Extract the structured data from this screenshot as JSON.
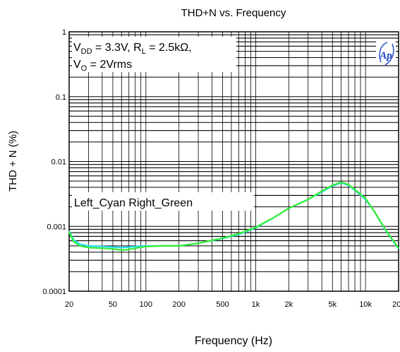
{
  "chart_data": {
    "type": "line",
    "title": "THD+N vs. Frequency",
    "xlabel": "Frequency (Hz)",
    "ylabel": "THD + N (%)",
    "xscale": "log",
    "yscale": "log",
    "xlim": [
      20,
      20000
    ],
    "ylim": [
      0.0001,
      1
    ],
    "grid": true,
    "x_ticks": [
      {
        "v": 20,
        "label": "20"
      },
      {
        "v": 50,
        "label": "50"
      },
      {
        "v": 100,
        "label": "100"
      },
      {
        "v": 200,
        "label": "200"
      },
      {
        "v": 500,
        "label": "500"
      },
      {
        "v": 1000,
        "label": "1k"
      },
      {
        "v": 2000,
        "label": "2k"
      },
      {
        "v": 5000,
        "label": "5k"
      },
      {
        "v": 10000,
        "label": "10k"
      },
      {
        "v": 20000,
        "label": "20k"
      }
    ],
    "y_ticks": [
      {
        "v": 1,
        "label": "1"
      },
      {
        "v": 0.1,
        "label": "0.1"
      },
      {
        "v": 0.01,
        "label": "0.01"
      },
      {
        "v": 0.001,
        "label": "0.001"
      },
      {
        "v": 0.0001,
        "label": "0.0001"
      }
    ],
    "annotations": {
      "conditions_line1": {
        "vdd_sym": "V",
        "vdd_sub": "DD",
        "vdd_val": " = 3.3V, R",
        "rl_sub": "L",
        "rl_val": " = 2.5kΩ,"
      },
      "conditions_line2": {
        "vo_sym": "V",
        "vo_sub": "O",
        "vo_val": " = 2Vrms"
      },
      "legend_text": "Left_Cyan Right_Green",
      "logo": "Ap"
    },
    "series": [
      {
        "color": "#22ddee",
        "x": [
          20,
          22,
          25,
          30,
          40,
          50,
          60,
          70,
          80,
          100,
          150,
          200,
          300,
          500,
          700,
          1000,
          1500,
          2000,
          3000,
          4000,
          5000,
          6000,
          7000,
          8000,
          10000,
          12000,
          15000,
          20000
        ],
        "y": [
          0.00085,
          0.00062,
          0.00053,
          0.0005,
          0.00049,
          0.00048,
          0.00047,
          0.00048,
          0.00049,
          0.0005,
          0.0005,
          0.0005,
          0.00055,
          0.00065,
          0.00075,
          0.00095,
          0.0014,
          0.0019,
          0.0026,
          0.0034,
          0.0042,
          0.0047,
          0.0043,
          0.0036,
          0.0026,
          0.0017,
          0.0009,
          0.00045
        ]
      },
      {
        "color": "#33ee33",
        "x": [
          20,
          22,
          25,
          30,
          40,
          50,
          60,
          70,
          80,
          100,
          150,
          200,
          300,
          500,
          700,
          1000,
          1500,
          2000,
          3000,
          4000,
          5000,
          6000,
          7000,
          8000,
          10000,
          12000,
          15000,
          20000
        ],
        "y": [
          0.00082,
          0.00058,
          0.0005,
          0.00047,
          0.00046,
          0.00045,
          0.00043,
          0.00044,
          0.00046,
          0.00049,
          0.0005,
          0.0005,
          0.00055,
          0.00066,
          0.00077,
          0.00097,
          0.0014,
          0.0019,
          0.0026,
          0.0035,
          0.0043,
          0.0048,
          0.0044,
          0.0037,
          0.0027,
          0.0017,
          0.00092,
          0.00046
        ]
      }
    ]
  }
}
